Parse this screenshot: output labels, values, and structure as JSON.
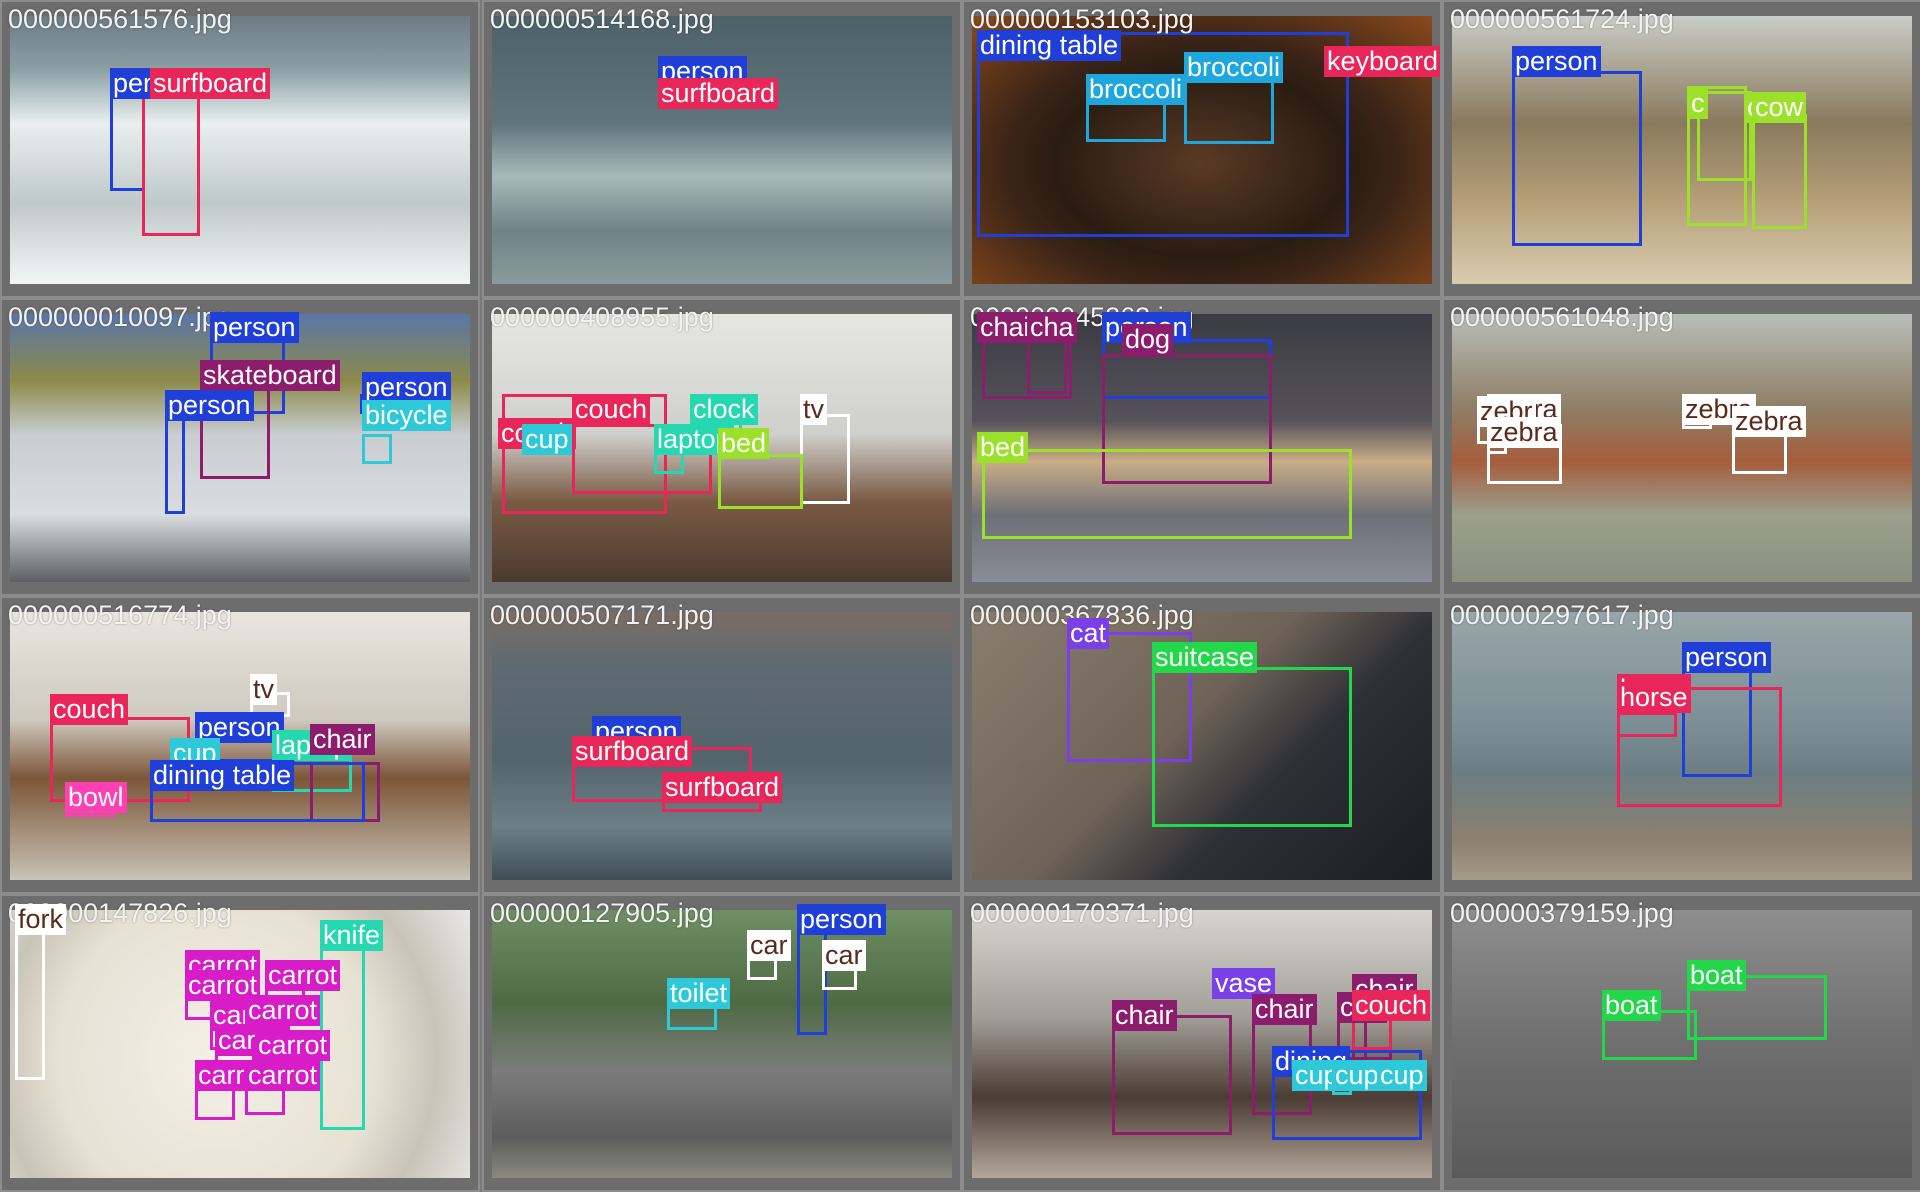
{
  "tiles": [
    {
      "filename": "000000561576.jpg",
      "scene": "surf",
      "dets": [
        {
          "label": "person",
          "color": "#1f3fd8",
          "text": "per"
        },
        {
          "label": "surfboard",
          "color": "#e8265a",
          "text": "surfboard"
        }
      ]
    },
    {
      "filename": "000000514168.jpg",
      "scene": "sea",
      "dets": [
        {
          "label": "person",
          "color": "#1f3fd8",
          "text": "person"
        },
        {
          "label": "surfboard",
          "color": "#e8265a",
          "text": "surfboard"
        }
      ]
    },
    {
      "filename": "000000153103.jpg",
      "scene": "food",
      "dets": [
        {
          "label": "dining table",
          "color": "#1f3fd8",
          "text": "dining table"
        },
        {
          "label": "broccoli",
          "color": "#1ea7dc",
          "text": "broccoli"
        },
        {
          "label": "broccoli",
          "color": "#1ea7dc",
          "text": "broccoli"
        },
        {
          "label": "keyboard",
          "color": "#e8265a",
          "text": "keyboard"
        }
      ]
    },
    {
      "filename": "000000561724.jpg",
      "scene": "village",
      "dets": [
        {
          "label": "person",
          "color": "#1f3fd8",
          "text": "person"
        },
        {
          "label": "cow",
          "color": "#9be12a",
          "text": "cow"
        },
        {
          "label": "cow",
          "color": "#9be12a",
          "text": "cow"
        },
        {
          "label": "cow",
          "color": "#9be12a",
          "text": "c"
        }
      ]
    },
    {
      "filename": "000000010097.jpg",
      "scene": "skate",
      "dets": [
        {
          "label": "person",
          "color": "#1f3fd8",
          "text": "person"
        },
        {
          "label": "skateboard",
          "color": "#8c1c6c",
          "text": "skateboard"
        },
        {
          "label": "person",
          "color": "#1f3fd8",
          "text": "person"
        },
        {
          "label": "person",
          "color": "#1f3fd8",
          "text": "person"
        },
        {
          "label": "bicycle",
          "color": "#2ec9d8",
          "text": "bicycle"
        }
      ]
    },
    {
      "filename": "000000408955.jpg",
      "scene": "room",
      "dets": [
        {
          "label": "couch",
          "color": "#e8265a",
          "text": "couch"
        },
        {
          "label": "couch",
          "color": "#e8265a",
          "text": "couch"
        },
        {
          "label": "clock",
          "color": "#25d8b0",
          "text": "clock"
        },
        {
          "label": "tv",
          "color": "#ffffff",
          "text": "tv"
        },
        {
          "label": "cup",
          "color": "#2ec9d8",
          "text": "cup"
        },
        {
          "label": "laptop",
          "color": "#25d8b0",
          "text": "laptop"
        },
        {
          "label": "bed",
          "color": "#9be12a",
          "text": "bed"
        }
      ]
    },
    {
      "filename": "000000045263.jpg",
      "scene": "dog",
      "dets": [
        {
          "label": "chair",
          "color": "#8c1c6c",
          "text": "chair"
        },
        {
          "label": "chair",
          "color": "#8c1c6c",
          "text": "cha"
        },
        {
          "label": "person",
          "color": "#1f3fd8",
          "text": "person"
        },
        {
          "label": "dog",
          "color": "#8c1c6c",
          "text": "dog"
        },
        {
          "label": "bed",
          "color": "#9be12a",
          "text": "bed"
        }
      ]
    },
    {
      "filename": "000000561048.jpg",
      "scene": "zebra",
      "dets": [
        {
          "label": "zebra",
          "color": "#ffffff",
          "text": "zebra"
        },
        {
          "label": "zebra",
          "color": "#ffffff",
          "text": "zebr"
        },
        {
          "label": "zebra",
          "color": "#ffffff",
          "text": "zebra"
        },
        {
          "label": "zebra",
          "color": "#ffffff",
          "text": "zebra"
        },
        {
          "label": "zebra",
          "color": "#ffffff",
          "text": "zebra"
        }
      ]
    },
    {
      "filename": "000000516774.jpg",
      "scene": "living",
      "dets": [
        {
          "label": "couch",
          "color": "#e8265a",
          "text": "couch"
        },
        {
          "label": "tv",
          "color": "#ffffff",
          "text": "tv"
        },
        {
          "label": "person",
          "color": "#1f3fd8",
          "text": "person"
        },
        {
          "label": "cup",
          "color": "#2ec9d8",
          "text": "cup"
        },
        {
          "label": "laptop",
          "color": "#25d8b0",
          "text": "laptop"
        },
        {
          "label": "chair",
          "color": "#8c1c6c",
          "text": "chair"
        },
        {
          "label": "dining table",
          "color": "#1f3fd8",
          "text": "dining table"
        },
        {
          "label": "bowl",
          "color": "#ff3fb4",
          "text": "bowl"
        }
      ]
    },
    {
      "filename": "000000507171.jpg",
      "scene": "river",
      "dets": [
        {
          "label": "person",
          "color": "#1f3fd8",
          "text": "person"
        },
        {
          "label": "surfboard",
          "color": "#e8265a",
          "text": "surfboard"
        },
        {
          "label": "surfboard",
          "color": "#e8265a",
          "text": "surfboard"
        }
      ]
    },
    {
      "filename": "000000367836.jpg",
      "scene": "cat",
      "dets": [
        {
          "label": "cat",
          "color": "#7b3fe8",
          "text": "cat"
        },
        {
          "label": "suitcase",
          "color": "#22d84a",
          "text": "suitcase"
        }
      ]
    },
    {
      "filename": "000000297617.jpg",
      "scene": "beach",
      "dets": [
        {
          "label": "person",
          "color": "#1f3fd8",
          "text": "person"
        },
        {
          "label": "horse",
          "color": "#e8265a",
          "text": "horse"
        },
        {
          "label": "horse",
          "color": "#e8265a",
          "text": "horse"
        }
      ]
    },
    {
      "filename": "000000147826.jpg",
      "scene": "plate",
      "dets": [
        {
          "label": "fork",
          "color": "#ffffff",
          "text": "fork"
        },
        {
          "label": "knife",
          "color": "#25d8b0",
          "text": "knife"
        },
        {
          "label": "carrot",
          "color": "#d81cc8",
          "text": "carrot"
        },
        {
          "label": "carrot",
          "color": "#d81cc8",
          "text": "carrot"
        },
        {
          "label": "carrot",
          "color": "#d81cc8",
          "text": "carrot"
        },
        {
          "label": "carrot",
          "color": "#d81cc8",
          "text": "carrot"
        },
        {
          "label": "carrot",
          "color": "#d81cc8",
          "text": "carrot"
        },
        {
          "label": "carrot",
          "color": "#d81cc8",
          "text": "carrot"
        },
        {
          "label": "carrot",
          "color": "#d81cc8",
          "text": "carrot"
        },
        {
          "label": "carrot",
          "color": "#d81cc8",
          "text": "carrot"
        },
        {
          "label": "carrot",
          "color": "#d81cc8",
          "text": "carrot"
        }
      ]
    },
    {
      "filename": "000000127905.jpg",
      "scene": "street",
      "dets": [
        {
          "label": "person",
          "color": "#1f3fd8",
          "text": "person"
        },
        {
          "label": "car",
          "color": "#ffffff",
          "text": "car"
        },
        {
          "label": "car",
          "color": "#ffffff",
          "text": "car"
        },
        {
          "label": "toilet",
          "color": "#2ec9d8",
          "text": "toilet"
        }
      ]
    },
    {
      "filename": "000000170371.jpg",
      "scene": "interior",
      "dets": [
        {
          "label": "vase",
          "color": "#7b3fe8",
          "text": "vase"
        },
        {
          "label": "chair",
          "color": "#8c1c6c",
          "text": "chair"
        },
        {
          "label": "chair",
          "color": "#8c1c6c",
          "text": "chair"
        },
        {
          "label": "chair",
          "color": "#8c1c6c",
          "text": "chair"
        },
        {
          "label": "chair",
          "color": "#8c1c6c",
          "text": "cha"
        },
        {
          "label": "couch",
          "color": "#e8265a",
          "text": "couch"
        },
        {
          "label": "dining table",
          "color": "#1f3fd8",
          "text": "dining"
        },
        {
          "label": "cup",
          "color": "#2ec9d8",
          "text": "cup"
        },
        {
          "label": "cup",
          "color": "#2ec9d8",
          "text": "cup"
        },
        {
          "label": "cup",
          "color": "#2ec9d8",
          "text": "cup"
        }
      ]
    },
    {
      "filename": "000000379159.jpg",
      "scene": "boat",
      "dets": [
        {
          "label": "boat",
          "color": "#22d84a",
          "text": "boat"
        },
        {
          "label": "boat",
          "color": "#22d84a",
          "text": "boat"
        }
      ]
    }
  ]
}
